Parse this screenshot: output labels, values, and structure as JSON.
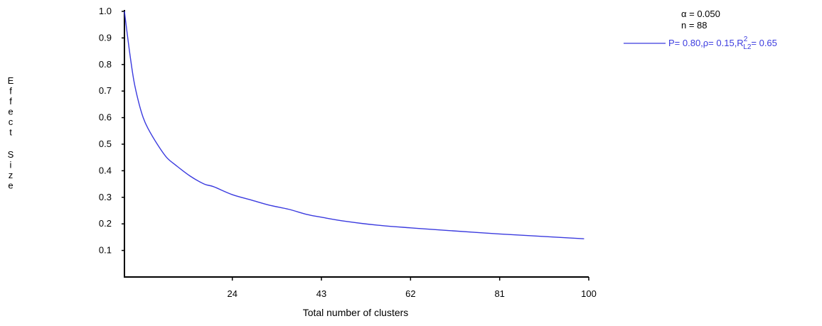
{
  "chart_data": {
    "type": "line",
    "title": "",
    "xlabel": "Total number of clusters",
    "ylabel": "Effect Size",
    "xlim": [
      1,
      100
    ],
    "ylim": [
      0.0,
      1.0
    ],
    "x_ticks": [
      24,
      43,
      62,
      81,
      100
    ],
    "x_tick_labels": [
      "24",
      "43",
      "62",
      "81",
      "100"
    ],
    "y_ticks": [
      0.1,
      0.2,
      0.3,
      0.4,
      0.5,
      0.6,
      0.7,
      0.8,
      0.9,
      1.0
    ],
    "y_tick_labels": [
      "0.1",
      "0.2",
      "0.3",
      "0.4",
      "0.5",
      "0.6",
      "0.7",
      "0.8",
      "0.9",
      "1.0"
    ],
    "grid": false,
    "legend_position": "top-right",
    "info_lines": [
      "α = 0.050",
      "n = 88"
    ],
    "series": [
      {
        "name": "P= 0.80,ρ= 0.15,R²L2= 0.65",
        "legend_parts": {
          "prefix": "P= 0.80,ρ= 0.15,R",
          "sup": "2",
          "sub": "L2",
          "suffix": "= 0.65"
        },
        "color": "#3b3bdf",
        "x": [
          1,
          2,
          3,
          4,
          5,
          6,
          8,
          10,
          12,
          15,
          18,
          20,
          24,
          28,
          32,
          36,
          40,
          43,
          48,
          55,
          62,
          70,
          81,
          90,
          99
        ],
        "y": [
          1.0,
          0.86,
          0.74,
          0.66,
          0.6,
          0.56,
          0.5,
          0.45,
          0.42,
          0.38,
          0.35,
          0.34,
          0.31,
          0.29,
          0.27,
          0.255,
          0.235,
          0.225,
          0.21,
          0.195,
          0.185,
          0.175,
          0.162,
          0.153,
          0.144
        ]
      }
    ]
  }
}
